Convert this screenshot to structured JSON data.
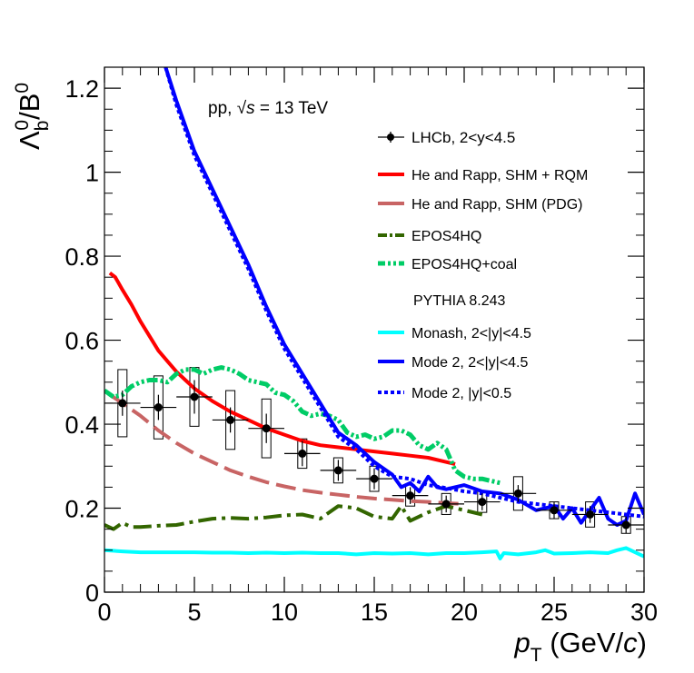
{
  "chart_data": {
    "type": "line",
    "ylabel": "Λb0/B0",
    "xlabel": "pT (GeV/c)",
    "annotation": "pp,   √s = 13 TeV",
    "xlim": [
      0,
      30
    ],
    "ylim": [
      0,
      1.25
    ],
    "x_ticks": [
      0,
      5,
      10,
      15,
      20,
      25,
      30
    ],
    "y_ticks": [
      0,
      0.2,
      0.4,
      0.6,
      0.8,
      1,
      1.2
    ],
    "x_tick_labels": [
      "0",
      "5",
      "10",
      "15",
      "20",
      "25",
      "30"
    ],
    "y_tick_labels": [
      "0",
      "0.2",
      "0.4",
      "0.6",
      "0.8",
      "1",
      "1.2"
    ],
    "legend": {
      "lhcb": "LHCb, 2<y<4.5",
      "he_rapp_rqm": "He and Rapp, SHM + RQM",
      "he_rapp_pdg": "He and Rapp, SHM (PDG)",
      "epos": "EPOS4HQ",
      "epos_coal": "EPOS4HQ+coal",
      "pythia_header": "PYTHIA 8.243",
      "monash": "Monash, 2<|y|<4.5",
      "mode2": "Mode 2, 2<|y|<4.5",
      "mode2_central": "Mode 2, |y|<0.5"
    },
    "data_points": {
      "name": "LHCb, 2<y<4.5",
      "x": [
        1,
        3,
        5,
        7,
        9,
        11,
        13,
        15,
        17,
        19,
        21,
        23,
        25,
        27,
        29
      ],
      "y": [
        0.45,
        0.44,
        0.465,
        0.41,
        0.39,
        0.33,
        0.29,
        0.27,
        0.23,
        0.21,
        0.215,
        0.235,
        0.195,
        0.185,
        0.16
      ],
      "xerr": [
        1,
        1,
        1,
        1,
        1,
        1,
        1,
        1,
        1,
        1,
        1,
        1,
        1,
        1,
        1
      ],
      "stat_err": [
        0.03,
        0.03,
        0.04,
        0.03,
        0.035,
        0.03,
        0.025,
        0.025,
        0.02,
        0.02,
        0.02,
        0.02,
        0.02,
        0.02,
        0.02
      ],
      "syst_err": [
        0.08,
        0.075,
        0.07,
        0.07,
        0.07,
        0.035,
        0.03,
        0.03,
        0.025,
        0.025,
        0.025,
        0.04,
        0.02,
        0.03,
        0.02
      ]
    },
    "series": [
      {
        "key": "he_rapp_rqm",
        "name": "He and Rapp, SHM + RQM",
        "color": "#ff0000",
        "style": "solid",
        "x": [
          0.3,
          0.6,
          1,
          1.5,
          2,
          2.5,
          3,
          3.5,
          4,
          4.5,
          5,
          6,
          7,
          8,
          9,
          10,
          11,
          12,
          13,
          14,
          15,
          16,
          17,
          18,
          19,
          19.5
        ],
        "y": [
          0.76,
          0.75,
          0.72,
          0.685,
          0.645,
          0.61,
          0.575,
          0.55,
          0.525,
          0.505,
          0.485,
          0.455,
          0.43,
          0.41,
          0.39,
          0.375,
          0.36,
          0.35,
          0.345,
          0.34,
          0.335,
          0.33,
          0.325,
          0.32,
          0.31,
          0.305
        ]
      },
      {
        "key": "he_rapp_pdg",
        "name": "He and Rapp, SHM (PDG)",
        "color": "#c86464",
        "style": "dashed",
        "x": [
          0.3,
          1,
          2,
          3,
          4,
          5,
          6,
          7,
          8,
          9,
          10,
          11,
          12,
          13,
          14,
          15,
          16,
          17,
          18,
          19,
          20
        ],
        "y": [
          0.47,
          0.45,
          0.42,
          0.385,
          0.355,
          0.33,
          0.31,
          0.29,
          0.275,
          0.262,
          0.252,
          0.243,
          0.237,
          0.232,
          0.227,
          0.223,
          0.22,
          0.217,
          0.215,
          0.212,
          0.21
        ]
      },
      {
        "key": "epos",
        "name": "EPOS4HQ",
        "color": "#336600",
        "style": "dashdot",
        "x": [
          0,
          0.5,
          1,
          1.5,
          2,
          3,
          4,
          5,
          6,
          7,
          8,
          9,
          10,
          11,
          12,
          12.5,
          13,
          14,
          15,
          16,
          16.5,
          17,
          18,
          19,
          20,
          21
        ],
        "y": [
          0.16,
          0.15,
          0.165,
          0.155,
          0.155,
          0.158,
          0.16,
          0.168,
          0.175,
          0.177,
          0.175,
          0.178,
          0.183,
          0.185,
          0.175,
          0.19,
          0.205,
          0.2,
          0.18,
          0.175,
          0.205,
          0.17,
          0.19,
          0.205,
          0.195,
          0.185
        ]
      },
      {
        "key": "epos_coal",
        "name": "EPOS4HQ+coal",
        "color": "#00cc66",
        "style": "dashdotdot",
        "x": [
          0,
          0.5,
          1,
          1.5,
          2,
          2.5,
          3,
          3.5,
          4,
          4.5,
          5,
          5.5,
          6,
          6.5,
          7,
          7.5,
          8,
          8.5,
          9,
          9.5,
          10,
          10.5,
          11,
          11.5,
          12,
          12.5,
          13,
          13.5,
          14,
          14.5,
          15,
          15.5,
          16,
          16.5,
          17,
          17.5,
          18,
          18.5,
          19,
          19.5,
          20,
          20.5,
          21,
          21.5,
          22
        ],
        "y": [
          0.48,
          0.465,
          0.47,
          0.49,
          0.5,
          0.505,
          0.505,
          0.5,
          0.52,
          0.53,
          0.53,
          0.52,
          0.53,
          0.535,
          0.53,
          0.52,
          0.505,
          0.5,
          0.495,
          0.475,
          0.47,
          0.455,
          0.43,
          0.42,
          0.425,
          0.42,
          0.41,
          0.38,
          0.37,
          0.375,
          0.365,
          0.37,
          0.385,
          0.385,
          0.375,
          0.35,
          0.34,
          0.355,
          0.34,
          0.29,
          0.275,
          0.27,
          0.27,
          0.265,
          0.26
        ]
      },
      {
        "key": "monash",
        "name": "Monash, 2<|y|<4.5",
        "color": "#00ffff",
        "style": "solid",
        "x": [
          0,
          1,
          2,
          3,
          4,
          5,
          6,
          7,
          8,
          9,
          10,
          11,
          12,
          13,
          14,
          15,
          16,
          17,
          18,
          19,
          20,
          21,
          21.8,
          22,
          22.2,
          23,
          24,
          24.5,
          25,
          26,
          27,
          28,
          28.5,
          29,
          30
        ],
        "y": [
          0.1,
          0.097,
          0.095,
          0.095,
          0.095,
          0.095,
          0.094,
          0.094,
          0.093,
          0.094,
          0.093,
          0.094,
          0.093,
          0.093,
          0.09,
          0.093,
          0.092,
          0.093,
          0.09,
          0.093,
          0.093,
          0.095,
          0.097,
          0.08,
          0.093,
          0.09,
          0.095,
          0.1,
          0.092,
          0.093,
          0.095,
          0.093,
          0.1,
          0.105,
          0.085
        ]
      },
      {
        "key": "mode2",
        "name": "Mode 2, 2<|y|<4.5",
        "color": "#0000ff",
        "style": "solid",
        "x": [
          3.4,
          4,
          5,
          6,
          7,
          8,
          9,
          10,
          11,
          12,
          13,
          14,
          15,
          16,
          16.5,
          17,
          17.5,
          18,
          18.5,
          19,
          20,
          21,
          22,
          23,
          24,
          25,
          25.5,
          26,
          26.5,
          27,
          27.5,
          28,
          28.5,
          29,
          29.5,
          30
        ],
        "y": [
          1.25,
          1.17,
          1.05,
          0.96,
          0.87,
          0.78,
          0.68,
          0.59,
          0.52,
          0.45,
          0.38,
          0.35,
          0.31,
          0.28,
          0.25,
          0.26,
          0.24,
          0.275,
          0.25,
          0.245,
          0.255,
          0.24,
          0.235,
          0.22,
          0.195,
          0.205,
          0.175,
          0.2,
          0.165,
          0.195,
          0.225,
          0.175,
          0.16,
          0.17,
          0.235,
          0.185
        ]
      },
      {
        "key": "mode2_central",
        "name": "Mode 2, |y|<0.5",
        "color": "#0000ff",
        "style": "dotted",
        "x": [
          3.4,
          4,
          5,
          6,
          7,
          8,
          9,
          10,
          11,
          12,
          13,
          14,
          15,
          16,
          17,
          18,
          19,
          20,
          21,
          22,
          23,
          24,
          25,
          26,
          27,
          28,
          29,
          30
        ],
        "y": [
          1.25,
          1.16,
          1.04,
          0.95,
          0.86,
          0.77,
          0.67,
          0.58,
          0.51,
          0.44,
          0.37,
          0.34,
          0.3,
          0.275,
          0.27,
          0.255,
          0.248,
          0.24,
          0.235,
          0.225,
          0.215,
          0.21,
          0.205,
          0.2,
          0.195,
          0.19,
          0.185,
          0.18
        ]
      }
    ]
  }
}
